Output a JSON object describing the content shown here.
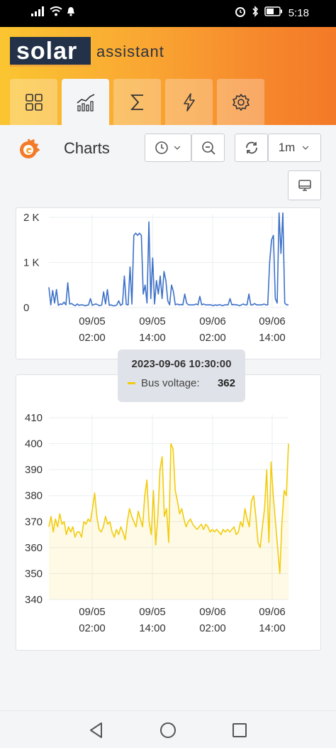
{
  "status_bar": {
    "time": "5:18",
    "icons": [
      "signal-icon",
      "wifi-icon",
      "notification-icon",
      "alarm-icon",
      "bluetooth-icon",
      "battery-icon"
    ]
  },
  "app": {
    "logo_main": "solar",
    "logo_sub": "assistant"
  },
  "tabs": [
    {
      "name": "dashboard",
      "icon": "grid-icon",
      "active": false
    },
    {
      "name": "charts",
      "icon": "chart-icon",
      "active": true
    },
    {
      "name": "totals",
      "icon": "sigma-icon",
      "active": false
    },
    {
      "name": "power",
      "icon": "lightning-icon",
      "active": false
    },
    {
      "name": "settings",
      "icon": "gear-icon",
      "active": false
    }
  ],
  "toolbar": {
    "title": "Charts",
    "refresh_interval": "1m"
  },
  "tooltip": {
    "time": "2023-09-06 10:30:00",
    "series": "Bus voltage:",
    "value": "362"
  },
  "colors": {
    "series_blue": "#3d71c8",
    "series_yellow": "#f2cc0c",
    "accent": "#f7931e"
  },
  "chart_data": [
    {
      "type": "line",
      "title": "",
      "y_ticks": [
        "0",
        "1 K",
        "2 K"
      ],
      "x_ticks": [
        [
          "09/05",
          "02:00"
        ],
        [
          "09/05",
          "14:00"
        ],
        [
          "09/06",
          "02:00"
        ],
        [
          "09/06",
          "14:00"
        ]
      ],
      "ylim": [
        0,
        2000
      ],
      "series": [
        {
          "values": [
            450,
            60,
            380,
            100,
            400,
            50,
            80,
            70,
            120,
            60,
            550,
            80,
            90,
            60,
            40,
            80,
            50,
            60,
            60,
            40,
            50,
            60,
            200,
            50,
            70,
            80,
            60,
            40,
            60,
            350,
            80,
            400,
            50,
            60,
            40,
            40,
            60,
            150,
            50,
            80,
            700,
            70,
            60,
            900,
            80,
            1600,
            1650,
            1600,
            1650,
            1600,
            300,
            500,
            100,
            1900,
            200,
            1100,
            80,
            600,
            300,
            700,
            200,
            800,
            600,
            150,
            60,
            500,
            350,
            60,
            80,
            60,
            70,
            60,
            300,
            100,
            60,
            60,
            60,
            60,
            80,
            60,
            250,
            60,
            80,
            60,
            60,
            60,
            60,
            40,
            60,
            50,
            60,
            60,
            40,
            60,
            60,
            60,
            200,
            60,
            70,
            60,
            60,
            40,
            60,
            80,
            60,
            60,
            300,
            60,
            60,
            90,
            60,
            60,
            60,
            60,
            80,
            60,
            60,
            1000,
            1500,
            1600,
            200,
            100,
            2100,
            1200,
            2100,
            100,
            60,
            60
          ]
        }
      ]
    },
    {
      "type": "line",
      "title": "",
      "y_ticks": [
        "340",
        "350",
        "360",
        "370",
        "380",
        "390",
        "400",
        "410"
      ],
      "x_ticks": [
        [
          "09/05",
          "02:00"
        ],
        [
          "09/05",
          "14:00"
        ],
        [
          "09/06",
          "02:00"
        ],
        [
          "09/06",
          "14:00"
        ]
      ],
      "ylim": [
        340,
        410
      ],
      "series": [
        {
          "name": "Bus voltage",
          "values": [
            368,
            372,
            366,
            371,
            368,
            373,
            369,
            370,
            365,
            368,
            366,
            368,
            364,
            366,
            366,
            364,
            370,
            369,
            371,
            370,
            375,
            381,
            372,
            367,
            366,
            368,
            372,
            369,
            370,
            366,
            364,
            367,
            365,
            368,
            366,
            363,
            370,
            375,
            372,
            370,
            368,
            374,
            371,
            368,
            380,
            386,
            370,
            365,
            382,
            361,
            372,
            390,
            395,
            372,
            375,
            362,
            400,
            398,
            382,
            378,
            373,
            375,
            371,
            368,
            370,
            371,
            369,
            368,
            367,
            368,
            369,
            367,
            369,
            368,
            366,
            367,
            366,
            367,
            366,
            365,
            367,
            366,
            367,
            366,
            367,
            368,
            365,
            366,
            370,
            368,
            375,
            371,
            368,
            378,
            380,
            372,
            362,
            360,
            368,
            375,
            390,
            362,
            393,
            380,
            370,
            360,
            350,
            370,
            382,
            380,
            400
          ]
        }
      ]
    }
  ]
}
